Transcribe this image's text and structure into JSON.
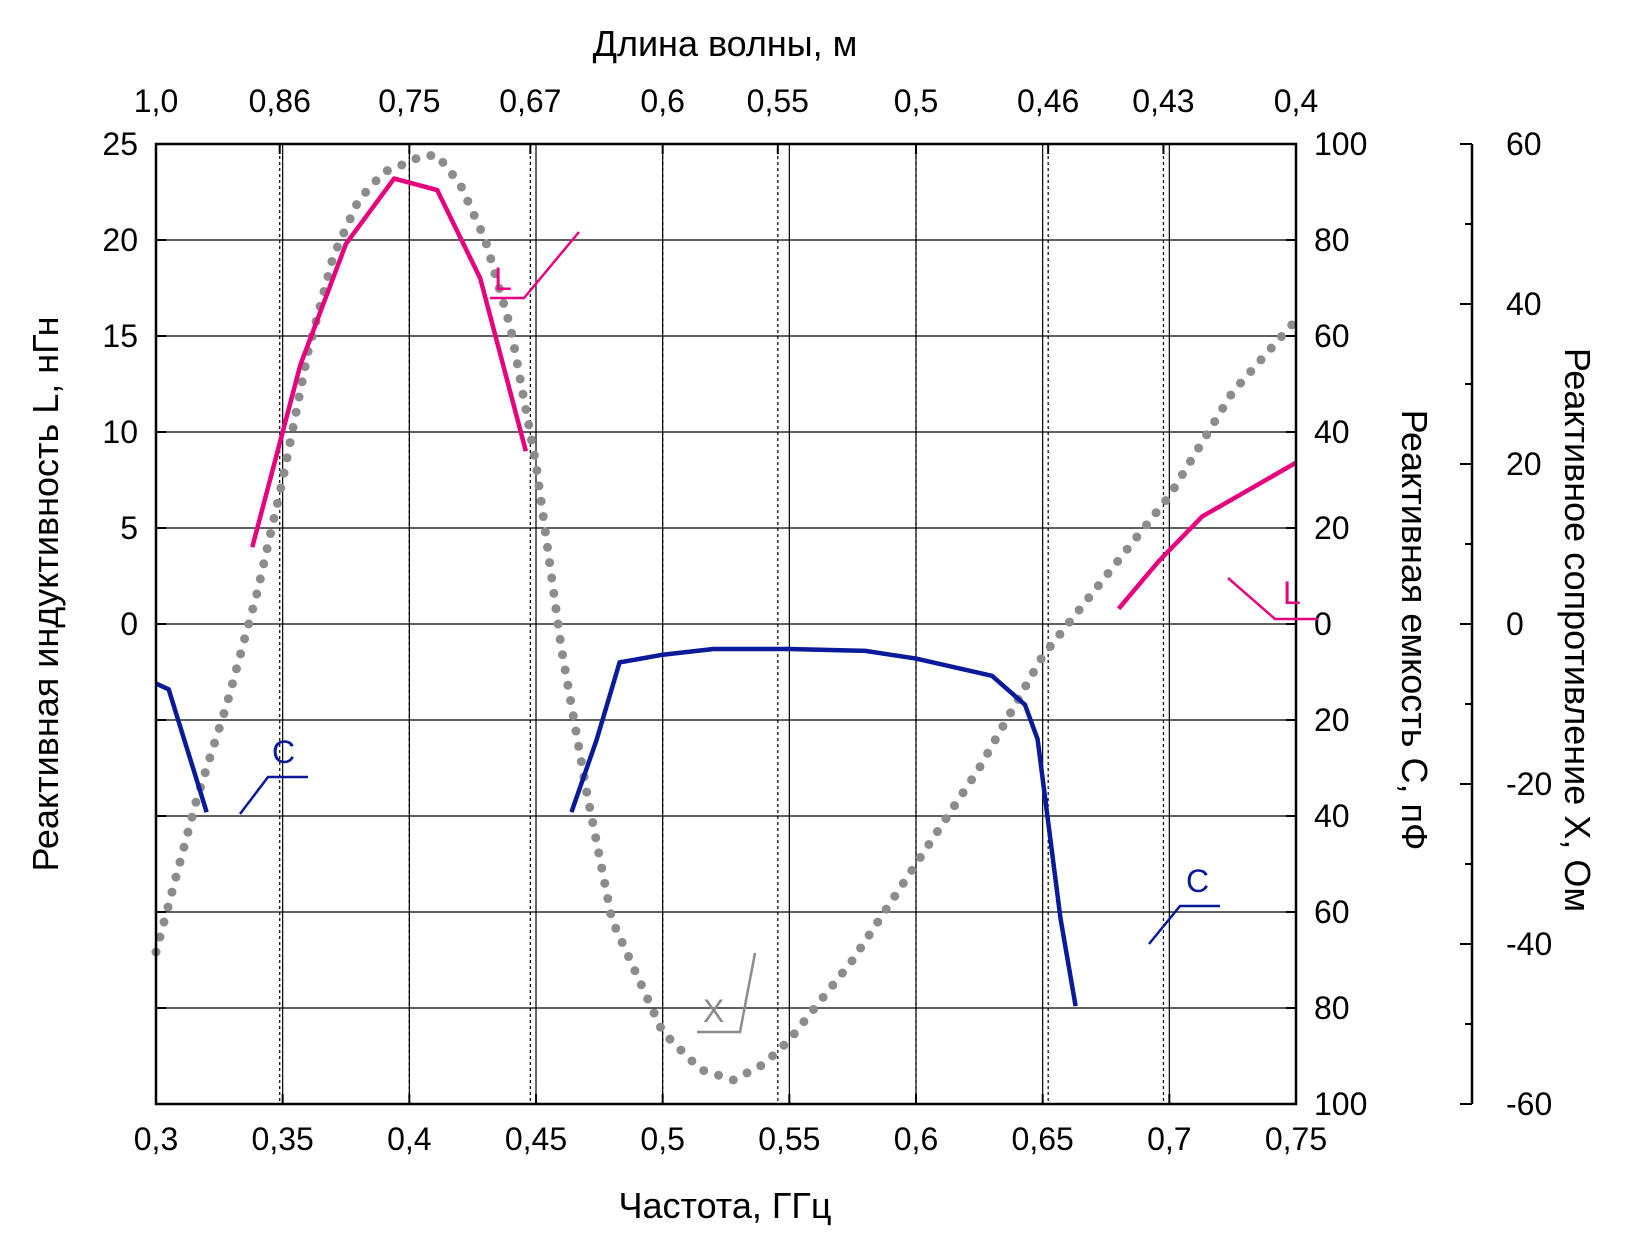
{
  "chart_data": {
    "type": "line",
    "title": "",
    "xlabel": "Частота, ГГц",
    "x_top_label": "Длина волны, м",
    "ylabel_left": "Реактивная индуктивность L, нГн",
    "ylabel_right1": "Реактивная емкость C, пФ",
    "ylabel_right2": "Реактивное сопротивление X, Ом",
    "xlim": [
      0.3,
      0.75
    ],
    "x_ticks": [
      0.3,
      0.35,
      0.4,
      0.45,
      0.5,
      0.55,
      0.6,
      0.65,
      0.7,
      0.75
    ],
    "x_tick_labels": [
      "0,3",
      "0,35",
      "0,4",
      "0,45",
      "0,5",
      "0,55",
      "0,6",
      "0,65",
      "0,7",
      "0,75"
    ],
    "top_ticks": [
      {
        "wavelength": 1.0,
        "label": "1,0"
      },
      {
        "wavelength": 0.86,
        "label": "0,86"
      },
      {
        "wavelength": 0.75,
        "label": "0,75"
      },
      {
        "wavelength": 0.67,
        "label": "0,67"
      },
      {
        "wavelength": 0.6,
        "label": "0,6"
      },
      {
        "wavelength": 0.55,
        "label": "0,55"
      },
      {
        "wavelength": 0.5,
        "label": "0,5"
      },
      {
        "wavelength": 0.46,
        "label": "0,46"
      },
      {
        "wavelength": 0.43,
        "label": "0,43"
      },
      {
        "wavelength": 0.4,
        "label": "0,4"
      }
    ],
    "y_left_ticks": [
      25,
      20,
      15,
      10,
      5,
      0
    ],
    "y_left_tick_labels": [
      "25",
      "20",
      "15",
      "10",
      "5",
      "0"
    ],
    "y_right1_ticks": [
      100,
      80,
      60,
      40,
      20,
      0,
      20,
      40,
      60,
      80,
      100
    ],
    "y_right1_tick_labels": [
      "100",
      "80",
      "60",
      "40",
      "20",
      "0",
      "20",
      "40",
      "60",
      "80",
      "100"
    ],
    "y_right2_ticks": [
      60,
      40,
      20,
      0,
      -20,
      -40,
      -60
    ],
    "y_right2_tick_labels": [
      "60",
      "40",
      "20",
      "0",
      "-20",
      "-40",
      "-60"
    ],
    "ylim_left": [
      -25,
      25
    ],
    "ylim_right2": [
      -60,
      60
    ],
    "series": [
      {
        "name": "L",
        "label": "L",
        "axis": "left",
        "color": "#e6007e",
        "style": "solid",
        "segments": [
          [
            [
              0.338,
              4.0
            ],
            [
              0.357,
              13.5
            ],
            [
              0.375,
              19.8
            ],
            [
              0.394,
              23.2
            ],
            [
              0.411,
              22.6
            ],
            [
              0.428,
              18.0
            ],
            [
              0.446,
              9.0
            ]
          ],
          [
            [
              0.68,
              0.8
            ],
            [
              0.696,
              3.3
            ],
            [
              0.713,
              5.6
            ],
            [
              0.75,
              8.4
            ]
          ]
        ]
      },
      {
        "name": "C",
        "label": "C",
        "axis": "left",
        "color": "#0a1a9a",
        "style": "solid",
        "segments": [
          [
            [
              0.3,
              -3.1
            ],
            [
              0.305,
              -3.4
            ],
            [
              0.32,
              -9.8
            ]
          ],
          [
            [
              0.464,
              -9.8
            ],
            [
              0.474,
              -6.0
            ],
            [
              0.483,
              -2.0
            ],
            [
              0.5,
              -1.6
            ],
            [
              0.52,
              -1.3
            ],
            [
              0.55,
              -1.3
            ],
            [
              0.58,
              -1.4
            ],
            [
              0.6,
              -1.8
            ],
            [
              0.63,
              -2.7
            ],
            [
              0.643,
              -4.2
            ],
            [
              0.648,
              -6.0
            ],
            [
              0.657,
              -15.3
            ],
            [
              0.663,
              -19.9
            ]
          ]
        ]
      },
      {
        "name": "X",
        "label": "X",
        "axis": "right2",
        "color": "#8c8c8c",
        "style": "dotted",
        "x": [
          0.3,
          0.316,
          0.328,
          0.34,
          0.35,
          0.36,
          0.37,
          0.38,
          0.39,
          0.398,
          0.405,
          0.411,
          0.42,
          0.43,
          0.44,
          0.45,
          0.46,
          0.47,
          0.48,
          0.5,
          0.515,
          0.528,
          0.54,
          0.55,
          0.575,
          0.6,
          0.625,
          0.65,
          0.675,
          0.7,
          0.725,
          0.75
        ],
        "values": [
          -41,
          -22,
          -10,
          4,
          18,
          34,
          46,
          53,
          56.5,
          57.5,
          58.5,
          58.6,
          55,
          48,
          37,
          20,
          -3,
          -21,
          -37,
          -51,
          -55.7,
          -57,
          -55,
          -52,
          -42,
          -30,
          -18,
          -4,
          6,
          16,
          29,
          38
        ]
      }
    ],
    "annotations": [
      {
        "text": "L",
        "series": "L"
      },
      {
        "text": "L",
        "series": "L"
      },
      {
        "text": "C",
        "series": "C"
      },
      {
        "text": "C",
        "series": "C"
      },
      {
        "text": "X",
        "series": "X"
      }
    ]
  }
}
